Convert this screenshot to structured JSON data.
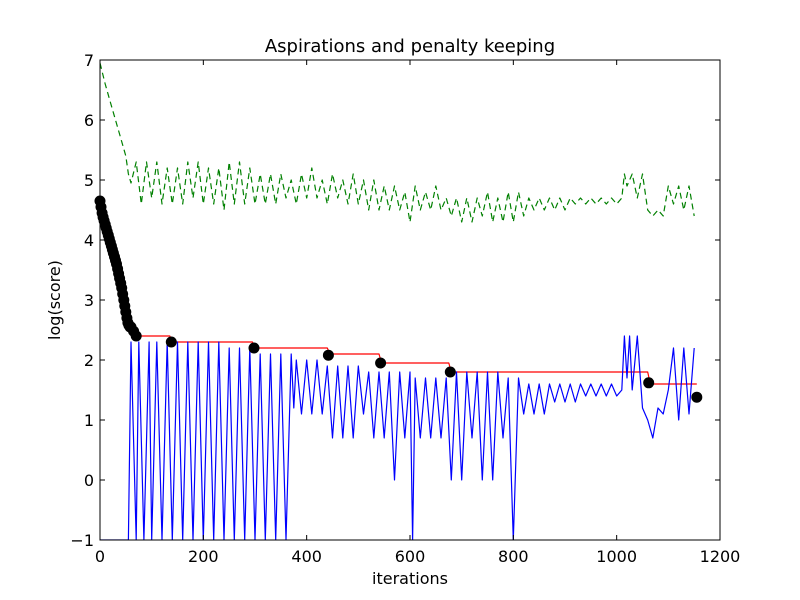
{
  "chart_data": {
    "type": "line",
    "title": "Aspirations and penalty keeping",
    "xlabel": "iterations",
    "ylabel": "log(score)",
    "xlim": [
      0,
      1200
    ],
    "ylim": [
      -1,
      7
    ],
    "xticks": [
      0,
      200,
      400,
      600,
      800,
      1000,
      1200
    ],
    "yticks": [
      -1,
      0,
      1,
      2,
      3,
      4,
      5,
      6,
      7
    ],
    "xtick_labels": [
      "0",
      "200",
      "400",
      "600",
      "800",
      "1000",
      "1200"
    ],
    "ytick_labels": [
      "−1",
      "0",
      "1",
      "2",
      "3",
      "4",
      "5",
      "6",
      "7"
    ],
    "grid": false,
    "colors": {
      "blue": "#0000ff",
      "green": "#008000",
      "red": "#ff0000",
      "marker": "#000000"
    },
    "series": [
      {
        "style": "green-dashed",
        "x": [
          0,
          10,
          20,
          30,
          40,
          50,
          55,
          60,
          70,
          80,
          90,
          100,
          110,
          120,
          130,
          140,
          150,
          160,
          170,
          180,
          190,
          200,
          210,
          220,
          230,
          240,
          250,
          260,
          270,
          280,
          290,
          300,
          310,
          320,
          330,
          340,
          350,
          360,
          370,
          380,
          390,
          400,
          410,
          420,
          430,
          440,
          450,
          460,
          470,
          480,
          490,
          500,
          510,
          520,
          530,
          540,
          550,
          560,
          570,
          580,
          590,
          600,
          610,
          620,
          630,
          640,
          650,
          660,
          670,
          680,
          690,
          700,
          710,
          720,
          730,
          740,
          750,
          760,
          770,
          780,
          790,
          800,
          810,
          820,
          830,
          840,
          850,
          860,
          870,
          880,
          890,
          900,
          910,
          920,
          930,
          940,
          950,
          960,
          970,
          980,
          990,
          1000,
          1010,
          1015,
          1020,
          1030,
          1040,
          1050,
          1060,
          1070,
          1080,
          1090,
          1100,
          1110,
          1120,
          1130,
          1140,
          1150
        ],
        "y": [
          6.95,
          6.6,
          6.3,
          6.0,
          5.7,
          5.4,
          5.1,
          4.95,
          5.3,
          4.6,
          5.3,
          4.7,
          5.3,
          4.6,
          5.2,
          4.6,
          5.2,
          4.6,
          5.3,
          4.7,
          5.3,
          4.6,
          5.2,
          4.6,
          5.2,
          4.5,
          5.3,
          4.6,
          5.3,
          4.6,
          5.2,
          4.6,
          5.1,
          4.6,
          5.1,
          4.6,
          5.1,
          4.7,
          5.0,
          4.6,
          5.1,
          4.7,
          5.2,
          4.7,
          5.0,
          4.6,
          5.1,
          4.7,
          5.0,
          4.6,
          5.1,
          4.6,
          5.0,
          4.5,
          5.0,
          4.5,
          4.9,
          4.5,
          4.9,
          4.5,
          4.8,
          4.3,
          4.9,
          4.5,
          4.8,
          4.5,
          4.9,
          4.5,
          4.7,
          4.4,
          4.7,
          4.3,
          4.7,
          4.3,
          4.7,
          4.4,
          4.8,
          4.3,
          4.7,
          4.3,
          4.8,
          4.3,
          4.8,
          4.4,
          4.7,
          4.5,
          4.7,
          4.5,
          4.7,
          4.5,
          4.7,
          4.5,
          4.7,
          4.6,
          4.7,
          4.6,
          4.7,
          4.6,
          4.7,
          4.6,
          4.7,
          4.6,
          4.7,
          5.1,
          4.9,
          5.1,
          4.7,
          5.1,
          4.5,
          4.4,
          4.5,
          4.4,
          4.9,
          4.6,
          4.9,
          4.5,
          4.9,
          4.4
        ]
      },
      {
        "style": "red-step",
        "x": [
          0,
          60,
          70,
          135,
          140,
          295,
          300,
          440,
          445,
          540,
          545,
          675,
          680,
          1060,
          1065,
          1155
        ],
        "y": [
          4.6,
          2.5,
          2.4,
          2.4,
          2.3,
          2.3,
          2.2,
          2.2,
          2.1,
          2.1,
          1.95,
          1.95,
          1.8,
          1.8,
          1.6,
          1.6
        ]
      },
      {
        "style": "blue-line",
        "x": [
          0,
          55,
          60,
          70,
          75,
          85,
          95,
          100,
          110,
          120,
          130,
          140,
          150,
          160,
          170,
          180,
          190,
          200,
          210,
          220,
          230,
          240,
          250,
          260,
          270,
          280,
          290,
          300,
          310,
          320,
          330,
          340,
          350,
          360,
          370,
          375,
          380,
          390,
          400,
          410,
          420,
          430,
          440,
          450,
          460,
          470,
          480,
          490,
          500,
          510,
          520,
          530,
          540,
          550,
          560,
          570,
          580,
          590,
          600,
          605,
          610,
          620,
          630,
          640,
          650,
          660,
          670,
          680,
          690,
          700,
          710,
          720,
          730,
          740,
          750,
          760,
          770,
          780,
          790,
          800,
          810,
          820,
          830,
          840,
          850,
          860,
          870,
          880,
          890,
          900,
          910,
          920,
          930,
          940,
          950,
          960,
          970,
          980,
          990,
          1000,
          1010,
          1015,
          1020,
          1025,
          1030,
          1040,
          1050,
          1060,
          1070,
          1080,
          1090,
          1100,
          1110,
          1120,
          1130,
          1140,
          1150
        ],
        "y": [
          -1.0,
          -1.0,
          2.3,
          -1.0,
          2.3,
          -1.0,
          2.3,
          -1.0,
          2.3,
          -1.0,
          2.3,
          -1.0,
          2.3,
          -1.0,
          2.3,
          -1.0,
          2.3,
          -1.0,
          2.3,
          -1.0,
          2.3,
          -1.0,
          2.2,
          -1.0,
          2.2,
          -1.0,
          2.2,
          -1.0,
          2.1,
          -1.0,
          2.1,
          -1.0,
          2.1,
          -1.0,
          2.1,
          1.2,
          2.0,
          1.1,
          2.0,
          1.1,
          2.0,
          1.1,
          1.9,
          0.7,
          1.9,
          0.7,
          1.9,
          0.7,
          1.9,
          1.1,
          1.8,
          0.7,
          1.8,
          0.7,
          1.8,
          0.0,
          1.8,
          0.7,
          1.8,
          -1.0,
          1.7,
          0.7,
          1.7,
          0.7,
          1.7,
          0.7,
          1.7,
          0.0,
          1.8,
          0.0,
          1.8,
          0.7,
          1.8,
          0.0,
          1.8,
          0.0,
          1.8,
          0.7,
          1.7,
          -1.0,
          1.7,
          1.1,
          1.6,
          1.1,
          1.6,
          1.1,
          1.6,
          1.3,
          1.6,
          1.3,
          1.6,
          1.3,
          1.6,
          1.4,
          1.6,
          1.4,
          1.6,
          1.4,
          1.6,
          1.4,
          1.5,
          2.4,
          1.7,
          2.4,
          1.5,
          2.4,
          1.2,
          1.0,
          0.7,
          1.2,
          1.1,
          1.5,
          2.2,
          1.0,
          2.2,
          1.1,
          2.2
        ]
      },
      {
        "style": "black-markers",
        "x": [
          0,
          2,
          4,
          6,
          8,
          10,
          12,
          14,
          16,
          18,
          20,
          22,
          24,
          26,
          28,
          30,
          32,
          34,
          36,
          38,
          40,
          42,
          44,
          46,
          48,
          50,
          52,
          54,
          56,
          58,
          60,
          65,
          70,
          138,
          298,
          442,
          543,
          678,
          1062,
          1155
        ],
        "y": [
          4.65,
          4.55,
          4.45,
          4.38,
          4.32,
          4.26,
          4.2,
          4.14,
          4.08,
          4.02,
          3.96,
          3.9,
          3.84,
          3.78,
          3.72,
          3.66,
          3.6,
          3.52,
          3.44,
          3.36,
          3.28,
          3.2,
          3.1,
          3.0,
          2.9,
          2.8,
          2.7,
          2.62,
          2.58,
          2.55,
          2.55,
          2.48,
          2.4,
          2.3,
          2.2,
          2.08,
          1.95,
          1.8,
          1.62,
          1.38
        ]
      }
    ]
  }
}
